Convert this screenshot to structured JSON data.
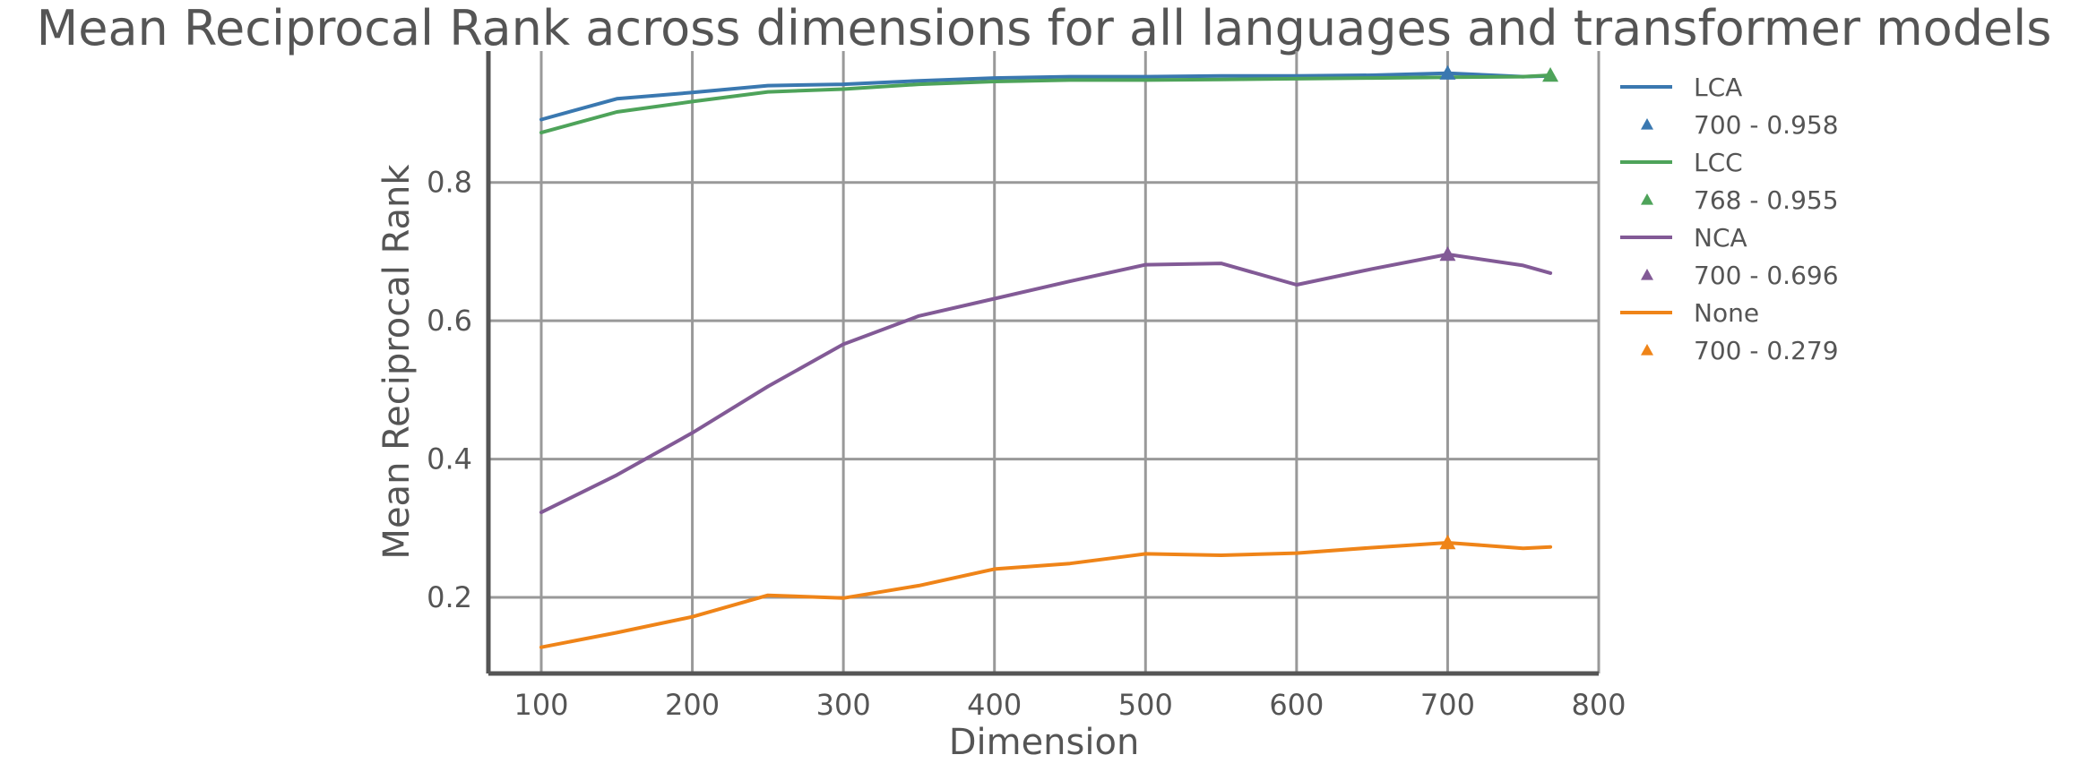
{
  "chart_data": {
    "type": "line",
    "title": "Mean Reciprocal Rank across dimensions for all languages and transformer models",
    "xlabel": "Dimension",
    "ylabel": "Mean Reciprocal Rank",
    "xlim": [
      65,
      800
    ],
    "ylim": [
      0.09,
      0.99
    ],
    "xticks": [
      100,
      200,
      300,
      400,
      500,
      600,
      700,
      800
    ],
    "yticks": [
      0.2,
      0.4,
      0.6,
      0.8
    ],
    "xtick_labels": [
      "100",
      "200",
      "300",
      "400",
      "500",
      "600",
      "700",
      "800"
    ],
    "ytick_labels": [
      "0.2",
      "0.4",
      "0.6",
      "0.8"
    ],
    "grid": true,
    "legend_position": "right, outside plot",
    "x": [
      100,
      150,
      200,
      250,
      300,
      350,
      400,
      450,
      500,
      550,
      600,
      650,
      700,
      750,
      768
    ],
    "series": [
      {
        "name": "LCA",
        "color": "#3a78b0",
        "values": [
          0.891,
          0.921,
          0.93,
          0.94,
          0.942,
          0.947,
          0.951,
          0.953,
          0.953,
          0.954,
          0.954,
          0.955,
          0.958,
          0.953,
          0.954
        ],
        "marker": {
          "x": 700,
          "y": 0.958,
          "label": "700 - 0.958"
        }
      },
      {
        "name": "LCC",
        "color": "#4ea35a",
        "values": [
          0.872,
          0.902,
          0.917,
          0.931,
          0.935,
          0.942,
          0.946,
          0.948,
          0.948,
          0.949,
          0.95,
          0.951,
          0.952,
          0.953,
          0.955
        ],
        "marker": {
          "x": 768,
          "y": 0.955,
          "label": "768 - 0.955"
        }
      },
      {
        "name": "NCA",
        "color": "#825a96",
        "values": [
          0.323,
          0.377,
          0.438,
          0.505,
          0.566,
          0.607,
          0.632,
          0.657,
          0.681,
          0.683,
          0.652,
          0.675,
          0.696,
          0.68,
          0.669
        ],
        "marker": {
          "x": 700,
          "y": 0.696,
          "label": "700 - 0.696"
        }
      },
      {
        "name": "None",
        "color": "#ef8418",
        "values": [
          0.128,
          0.149,
          0.172,
          0.203,
          0.199,
          0.217,
          0.241,
          0.249,
          0.263,
          0.261,
          0.264,
          0.272,
          0.279,
          0.271,
          0.273
        ],
        "marker": {
          "x": 700,
          "y": 0.279,
          "label": "700 - 0.279"
        }
      }
    ]
  }
}
